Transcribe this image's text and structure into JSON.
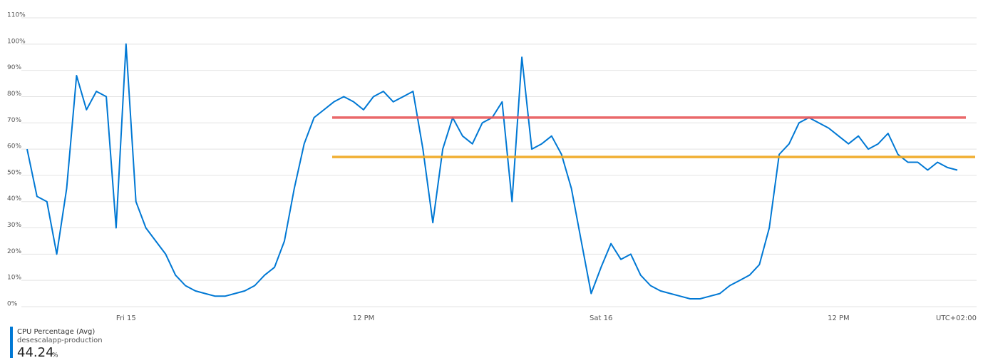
{
  "chart_data": {
    "type": "line",
    "categories": [
      null,
      null,
      null,
      null,
      null,
      null,
      null,
      null,
      null,
      null,
      "Fri 15",
      null,
      null,
      null,
      null,
      null,
      null,
      null,
      null,
      null,
      null,
      null,
      null,
      null,
      null,
      null,
      null,
      null,
      null,
      null,
      null,
      null,
      null,
      null,
      "12 PM",
      null,
      null,
      null,
      null,
      null,
      null,
      null,
      null,
      null,
      null,
      null,
      null,
      null,
      null,
      null,
      null,
      null,
      null,
      null,
      null,
      null,
      null,
      null,
      "Sat 16",
      null,
      null,
      null,
      null,
      null,
      null,
      null,
      null,
      null,
      null,
      null,
      null,
      null,
      null,
      null,
      null,
      null,
      null,
      null,
      null,
      null,
      null,
      null,
      "12 PM",
      null,
      null,
      null,
      null,
      null,
      null,
      null,
      null,
      null,
      null,
      null,
      null
    ],
    "timezone_label": "UTC+02:00",
    "series": [
      {
        "name": "CPU Percentage (Avg)",
        "color": "#0078d4",
        "values": [
          60,
          42,
          40,
          20,
          45,
          88,
          75,
          82,
          80,
          30,
          100,
          40,
          30,
          25,
          20,
          12,
          8,
          6,
          5,
          4,
          4,
          5,
          6,
          8,
          12,
          15,
          25,
          45,
          62,
          72,
          75,
          78,
          80,
          78,
          75,
          80,
          82,
          78,
          80,
          82,
          60,
          32,
          60,
          72,
          65,
          62,
          70,
          72,
          78,
          40,
          95,
          60,
          62,
          65,
          58,
          45,
          25,
          5,
          15,
          24,
          18,
          20,
          12,
          8,
          6,
          5,
          4,
          3,
          3,
          4,
          5,
          8,
          10,
          12,
          16,
          30,
          58,
          62,
          70,
          72,
          70,
          68,
          65,
          62,
          65,
          60,
          62,
          66,
          58,
          55,
          55,
          52,
          55,
          53,
          52
        ]
      }
    ],
    "reference_lines": [
      {
        "value": 72,
        "color": "#e8585a"
      },
      {
        "value": 57,
        "color": "#f0a820"
      }
    ],
    "ylim": [
      0,
      110
    ],
    "yticks": [
      {
        "value": 0,
        "label": "0%"
      },
      {
        "value": 10,
        "label": "10%"
      },
      {
        "value": 20,
        "label": "20%"
      },
      {
        "value": 30,
        "label": "30%"
      },
      {
        "value": 40,
        "label": "40%"
      },
      {
        "value": 50,
        "label": "50%"
      },
      {
        "value": 60,
        "label": "60%"
      },
      {
        "value": 70,
        "label": "70%"
      },
      {
        "value": 80,
        "label": "80%"
      },
      {
        "value": 90,
        "label": "90%"
      },
      {
        "value": 100,
        "label": "100%"
      },
      {
        "value": 110,
        "label": "110%"
      }
    ],
    "grid": true,
    "legend": {
      "resource": "desescalapp-production",
      "summary_value": 44.24,
      "summary_unit": "%"
    }
  }
}
